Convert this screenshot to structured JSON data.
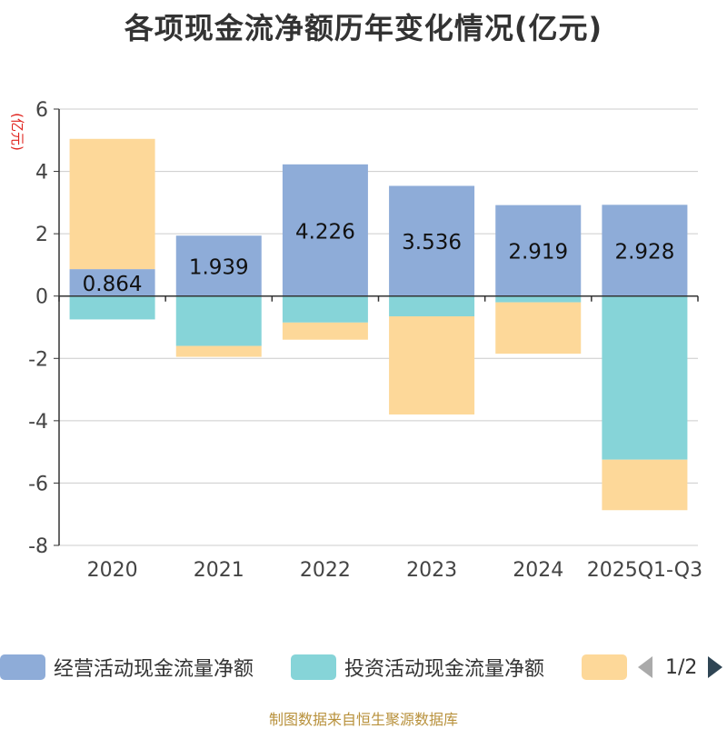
{
  "chart_data": {
    "type": "bar",
    "stacked": true,
    "title": "各项现金流净额历年变化情况(亿元)",
    "ylabel": "(亿元)",
    "xlabel": "",
    "ylim": [
      -8,
      6
    ],
    "yticks": [
      6,
      4,
      2,
      0,
      -2,
      -4,
      -6,
      -8
    ],
    "categories": [
      "2020",
      "2021",
      "2022",
      "2023",
      "2024",
      "2025Q1-Q3"
    ],
    "series": [
      {
        "name": "经营活动现金流量净额",
        "color": "#8eacd8",
        "values": [
          0.864,
          1.939,
          4.226,
          3.536,
          2.919,
          2.928
        ],
        "labels": [
          "0.864",
          "1.939",
          "4.226",
          "3.536",
          "2.919",
          "2.928"
        ]
      },
      {
        "name": "投资活动现金流量净额",
        "color": "#86d4d8",
        "values": [
          -0.75,
          -1.6,
          -0.85,
          -0.65,
          -0.2,
          -5.25
        ]
      },
      {
        "name": "",
        "color": "#fdd899",
        "values": [
          4.18,
          -0.35,
          -0.55,
          -3.15,
          -1.65,
          -1.62
        ]
      }
    ]
  },
  "legend": {
    "items": [
      {
        "label": "经营活动现金流量净额",
        "color": "#8eacd8"
      },
      {
        "label": "投资活动现金流量净额",
        "color": "#86d4d8"
      },
      {
        "label": "",
        "color": "#fdd899"
      }
    ],
    "page": "1/2"
  },
  "source": "制图数据来自恒生聚源数据库"
}
